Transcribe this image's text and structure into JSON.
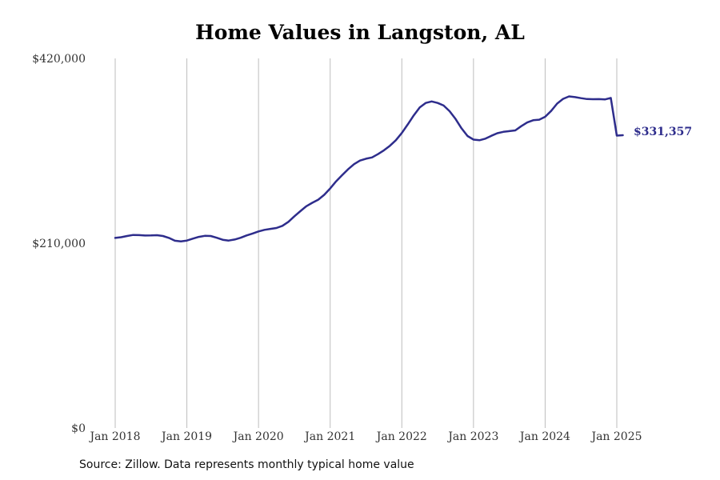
{
  "title": "Home Values in Langston, AL",
  "source_note": "Source: Zillow. Data represents monthly typical home value",
  "colors": {
    "line": "#2e2d8c",
    "grid": "#bdbdbd",
    "text": "#333333"
  },
  "chart_data": {
    "type": "line",
    "title": "Home Values in Langston, AL",
    "xlabel": "",
    "ylabel": "",
    "grid": "vertical",
    "y_ticks": [
      0,
      210000,
      420000
    ],
    "y_tick_labels": [
      "$0",
      "$210,000",
      "$420,000"
    ],
    "ylim": [
      0,
      420000
    ],
    "x_ticks": [
      "2018-01",
      "2019-01",
      "2020-01",
      "2021-01",
      "2022-01",
      "2023-01",
      "2024-01",
      "2025-01"
    ],
    "x_tick_labels": [
      "Jan 2018",
      "Jan 2019",
      "Jan 2020",
      "Jan 2021",
      "Jan 2022",
      "Jan 2023",
      "Jan 2024",
      "Jan 2025"
    ],
    "end_label": "$331,357",
    "series": [
      {
        "x": [
          "2018-01",
          "2018-02",
          "2018-03",
          "2018-04",
          "2018-05",
          "2018-06",
          "2018-07",
          "2018-08",
          "2018-09",
          "2018-10",
          "2018-11",
          "2018-12",
          "2019-01",
          "2019-02",
          "2019-03",
          "2019-04",
          "2019-05",
          "2019-06",
          "2019-07",
          "2019-08",
          "2019-09",
          "2019-10",
          "2019-11",
          "2019-12",
          "2020-01",
          "2020-02",
          "2020-03",
          "2020-04",
          "2020-05",
          "2020-06",
          "2020-07",
          "2020-08",
          "2020-09",
          "2020-10",
          "2020-11",
          "2020-12",
          "2021-01",
          "2021-02",
          "2021-03",
          "2021-04",
          "2021-05",
          "2021-06",
          "2021-07",
          "2021-08",
          "2021-09",
          "2021-10",
          "2021-11",
          "2021-12",
          "2022-01",
          "2022-02",
          "2022-03",
          "2022-04",
          "2022-05",
          "2022-06",
          "2022-07",
          "2022-08",
          "2022-09",
          "2022-10",
          "2022-11",
          "2022-12",
          "2023-01",
          "2023-02",
          "2023-03",
          "2023-04",
          "2023-05",
          "2023-06",
          "2023-07",
          "2023-08",
          "2023-09",
          "2023-10",
          "2023-11",
          "2023-12",
          "2024-01",
          "2024-02",
          "2024-03",
          "2024-04",
          "2024-05",
          "2024-06",
          "2024-07",
          "2024-08",
          "2024-09",
          "2024-10",
          "2024-11",
          "2024-12",
          "2025-01",
          "2025-02"
        ],
        "values": [
          216000,
          216800,
          218200,
          219400,
          219200,
          218700,
          218800,
          219100,
          218200,
          216000,
          212800,
          212100,
          213000,
          215200,
          217200,
          218400,
          218200,
          216200,
          213900,
          213000,
          214200,
          216200,
          218800,
          221000,
          223400,
          225200,
          226300,
          227300,
          229700,
          234300,
          240500,
          246400,
          252000,
          255900,
          259500,
          265000,
          272200,
          280400,
          287300,
          294000,
          299800,
          303900,
          306000,
          307500,
          311200,
          315500,
          320700,
          327000,
          335300,
          345100,
          355300,
          364400,
          369400,
          371100,
          369400,
          366500,
          360000,
          351100,
          340500,
          331800,
          327700,
          327000,
          328800,
          332100,
          335000,
          336500,
          337400,
          338200,
          343000,
          347200,
          349700,
          350400,
          353600,
          360300,
          368600,
          374000,
          376800,
          376000,
          374800,
          373800,
          373600,
          373700,
          373400,
          375100,
          331357,
          331357
        ],
        "note": ""
      }
    ]
  }
}
